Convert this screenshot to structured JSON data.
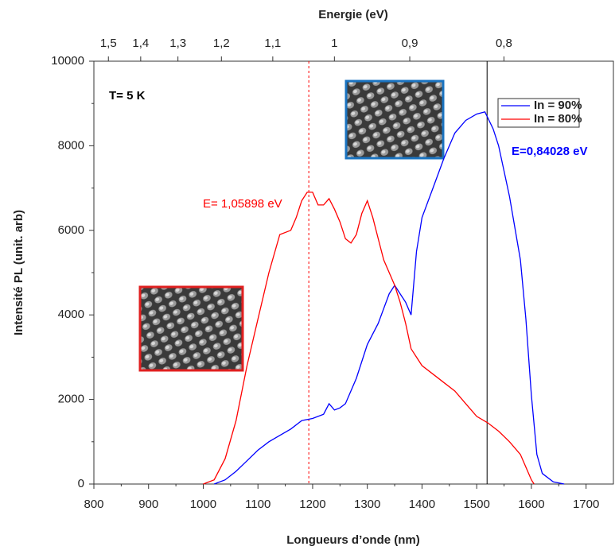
{
  "chart_data": {
    "type": "line",
    "x_label": "Longueurs d’onde  (nm)",
    "x2_label": "Energie (eV)",
    "y_label": "Intensité PL (unit. arb)",
    "xlim": [
      800,
      1750
    ],
    "xticks": [
      800,
      900,
      1000,
      1100,
      1200,
      1300,
      1400,
      1500,
      1600,
      1700
    ],
    "ylim": [
      0,
      10000
    ],
    "yticks": [
      0,
      2000,
      4000,
      6000,
      8000,
      10000
    ],
    "x2ticks": [
      {
        "value": 1.5,
        "label": "1,5"
      },
      {
        "value": 1.4,
        "label": "1,4"
      },
      {
        "value": 1.3,
        "label": "1,3"
      },
      {
        "value": 1.2,
        "label": "1,2"
      },
      {
        "value": 1.1,
        "label": "1,1"
      },
      1,
      {
        "value": 0.9,
        "label": "0,9"
      },
      {
        "value": 0.8,
        "label": "0,8"
      }
    ],
    "legend": "top-right",
    "annotations": [
      {
        "text": "T= 5 K",
        "color": "#000000"
      },
      {
        "text": "E= 1,05898 eV",
        "color": "#ff0000"
      },
      {
        "text": "E=0,84028 eV",
        "color": "#0000ff"
      }
    ],
    "vlines": [
      {
        "x": 1193,
        "color": "#ff0000",
        "dashed": true
      },
      {
        "x": 1519,
        "color": "#000000",
        "dashed": false
      }
    ],
    "series": [
      {
        "name": "In = 90%",
        "color": "#0000ff",
        "x": [
          1020,
          1040,
          1060,
          1080,
          1100,
          1120,
          1140,
          1160,
          1180,
          1200,
          1220,
          1230,
          1240,
          1250,
          1260,
          1280,
          1300,
          1320,
          1340,
          1350,
          1360,
          1370,
          1380,
          1390,
          1400,
          1420,
          1440,
          1460,
          1480,
          1500,
          1515,
          1530,
          1540,
          1560,
          1580,
          1590,
          1600,
          1610,
          1620,
          1640,
          1660
        ],
        "values": [
          0,
          100,
          300,
          550,
          800,
          1000,
          1150,
          1300,
          1500,
          1550,
          1650,
          1900,
          1750,
          1800,
          1900,
          2500,
          3300,
          3800,
          4500,
          4700,
          4500,
          4300,
          4000,
          5500,
          6300,
          7000,
          7700,
          8300,
          8600,
          8750,
          8800,
          8400,
          8000,
          6800,
          5300,
          3900,
          2100,
          700,
          250,
          50,
          0
        ]
      },
      {
        "name": "In = 80%",
        "color": "#ff0000",
        "x": [
          1000,
          1020,
          1040,
          1060,
          1080,
          1100,
          1120,
          1140,
          1160,
          1170,
          1180,
          1190,
          1200,
          1210,
          1220,
          1230,
          1240,
          1250,
          1260,
          1270,
          1280,
          1290,
          1300,
          1310,
          1320,
          1330,
          1340,
          1350,
          1360,
          1370,
          1380,
          1390,
          1400,
          1420,
          1440,
          1460,
          1480,
          1500,
          1520,
          1540,
          1560,
          1580,
          1590,
          1600,
          1605
        ],
        "values": [
          0,
          100,
          600,
          1500,
          2800,
          3900,
          5000,
          5900,
          6000,
          6300,
          6700,
          6900,
          6900,
          6600,
          6600,
          6750,
          6500,
          6200,
          5800,
          5700,
          5900,
          6400,
          6700,
          6300,
          5800,
          5300,
          5000,
          4700,
          4300,
          3800,
          3200,
          3000,
          2800,
          2600,
          2400,
          2200,
          1900,
          1600,
          1450,
          1250,
          1000,
          700,
          400,
          100,
          0
        ]
      }
    ]
  }
}
